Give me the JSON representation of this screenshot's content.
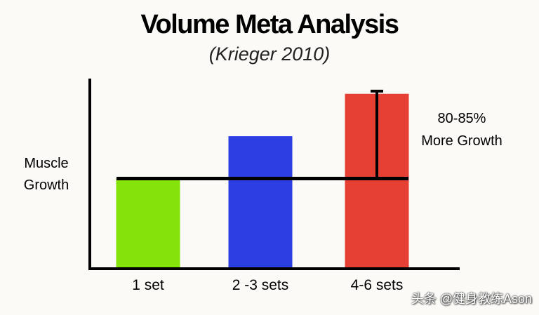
{
  "chart_data": {
    "type": "bar",
    "title": "Volume Meta Analysis",
    "subtitle": "(Krieger 2010)",
    "ylabel": "Muscle Growth",
    "xlabel": "",
    "categories": [
      "1 set",
      "2 -3 sets",
      "4-6 sets"
    ],
    "values": [
      1.0,
      1.47,
      1.94
    ],
    "colors": [
      "#86e30a",
      "#2b3fe3",
      "#e63f33"
    ],
    "ylim": [
      0,
      2
    ],
    "baseline_value": 1.0,
    "error_bar": {
      "category": "4-6 sets",
      "from": 1.0,
      "to": 1.97
    },
    "annotation": [
      "80-85%",
      "More Growth"
    ],
    "grid": false,
    "legend": "none"
  },
  "watermark": "头条 @健身教练Ason"
}
